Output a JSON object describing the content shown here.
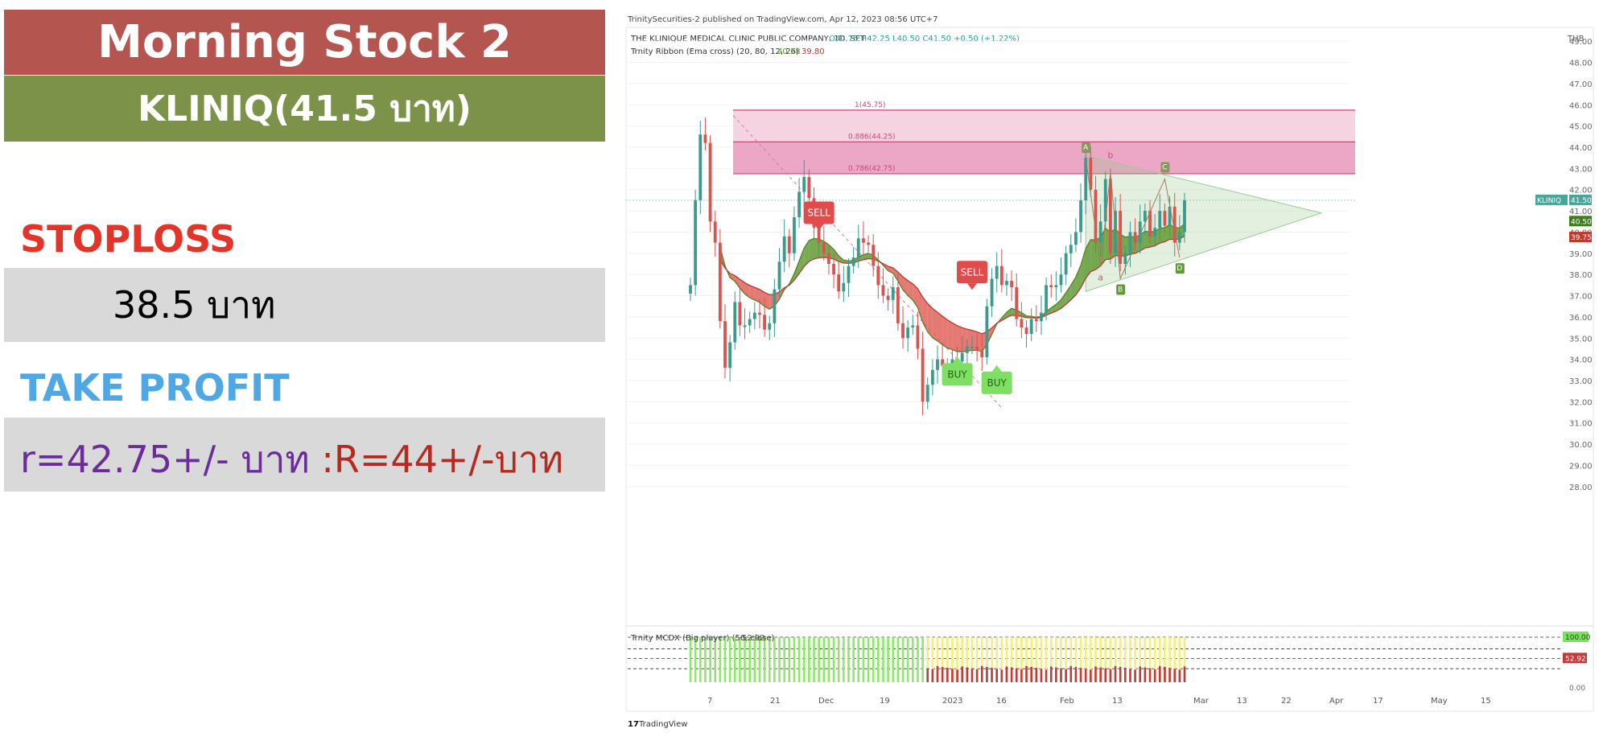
{
  "panel": {
    "title": "Morning Stock 2",
    "ticker": "KLINIQ(41.5 บาท)",
    "stoploss_label": "STOPLOSS",
    "stoploss_value": "38.5 บาท",
    "take_profit_label": "TAKE PROFIT",
    "take_profit_r": "r=42.75+/- บาท",
    "take_profit_R": ":R=44+/-บาท"
  },
  "colors": {
    "title_bg": "#b45550",
    "ticker_bg": "#7b9248",
    "stoploss": "#e3342a",
    "take_profit": "#4fa7e4",
    "up": "#3a9a8c",
    "down": "#d9534f",
    "zone": "#e06f9c"
  },
  "tv": {
    "published": "TrinitySecurities-2 published on TradingView.com, Apr 12, 2023 08:56 UTC+7",
    "symbol_line": "THE KLINIQUE MEDICAL CLINIC PUBLIC COMPANY, 1D, SET",
    "ohlc": "O40.75 H42.25 L40.50 C41.50 +0.50 (+1.22%)",
    "ribbon_line": "Trnity Ribbon (Ema cross) (20, 80, 12, 26)",
    "ribbon_v1": "40.38",
    "ribbon_v2": "39.80",
    "currency": "THB",
    "symbol_tag": "KLINIQ",
    "last_price_tag": "41.50",
    "ema_fast_tag": "40.50",
    "ema_slow_tag": "39.75",
    "indicator_label": "Trnity MCDX (Big player) (50, close)",
    "indicator_value": "52.92",
    "indicator_max_tag": "100.00",
    "indicator_val_tag": "52.92",
    "indicator_zero": "0.00",
    "footer": "TradingView"
  },
  "chart_data": {
    "type": "candlestick",
    "price_axis": [
      "49.00",
      "48.00",
      "47.00",
      "46.00",
      "45.00",
      "44.00",
      "43.00",
      "42.00",
      "41.00",
      "40.00",
      "39.00",
      "38.00",
      "37.00",
      "36.00",
      "35.00",
      "34.00",
      "33.00",
      "32.00",
      "31.00",
      "30.00",
      "29.00",
      "28.00"
    ],
    "ylim": [
      27.5,
      49.5
    ],
    "x_ticks": [
      "7",
      "21",
      "Dec",
      "19",
      "2023",
      "16",
      "Feb",
      "13",
      "Mar",
      "13",
      "22",
      "Apr",
      "17",
      "May",
      "15"
    ],
    "fib_levels": [
      {
        "label": "1(45.75)",
        "value": 45.75
      },
      {
        "label": "0.886(44.25)",
        "value": 44.25
      },
      {
        "label": "0.786(42.75)",
        "value": 42.75
      }
    ],
    "pattern_points": [
      "A",
      "b",
      "C",
      "a",
      "B",
      "D"
    ],
    "signals": [
      {
        "type": "SELL",
        "label": "SELL"
      },
      {
        "type": "SELL",
        "label": "SELL"
      },
      {
        "type": "BUY",
        "label": "BUY"
      },
      {
        "type": "BUY",
        "label": "BUY"
      }
    ],
    "closes": [
      37.5,
      41.5,
      44.6,
      44.2,
      40.5,
      39.5,
      35.8,
      33.6,
      34.8,
      36.7,
      35.6,
      35.6,
      35.9,
      36.2,
      36.1,
      35.4,
      35.7,
      37.3,
      38.6,
      39.8,
      39.0,
      40.7,
      41.9,
      42.6,
      41.6,
      40.2,
      39.5,
      39.0,
      38.5,
      38.0,
      37.2,
      37.6,
      38.4,
      38.8,
      39.7,
      39.5,
      39.4,
      38.4,
      37.5,
      37.0,
      36.8,
      37.4,
      35.7,
      35.0,
      35.5,
      35.6,
      34.5,
      32.0,
      32.8,
      33.5,
      34.0,
      33.7,
      33.7,
      34.0,
      33.9,
      34.3,
      34.6,
      34.6,
      34.4,
      34.1,
      36.5,
      37.8,
      38.4,
      37.5,
      37.7,
      37.4,
      35.9,
      35.5,
      35.2,
      35.9,
      35.8,
      36.2,
      37.5,
      37.4,
      37.5,
      38.0,
      39.0,
      39.4,
      40.0,
      41.5,
      43.5,
      42.0,
      39.5,
      40.5,
      42.5,
      39.0,
      41.0,
      38.5,
      39.0,
      40.0,
      39.5,
      40.5,
      41.0,
      39.8,
      40.2,
      41.0,
      40.3,
      41.2,
      39.5,
      40.0,
      41.5
    ],
    "indicator": {
      "label": "Trnity MCDX (Big player) (50, close)",
      "max": 100.0,
      "value": 52.92,
      "min": 0.0
    }
  }
}
